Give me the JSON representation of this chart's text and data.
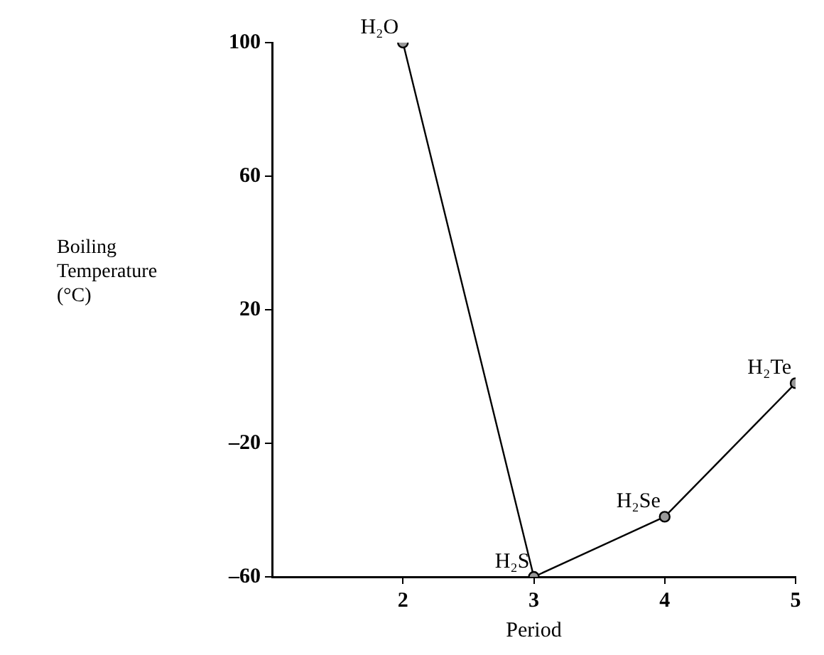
{
  "chart_data": {
    "type": "line",
    "xlabel": "Period",
    "ylabel": "Boiling Temperature (°C)",
    "x": [
      2,
      3,
      4,
      5
    ],
    "series": [
      {
        "color": "#000000",
        "values": [
          100,
          -60,
          -42,
          -2
        ]
      }
    ],
    "xlim": [
      1,
      5
    ],
    "xticks": [
      2,
      3,
      4,
      5
    ],
    "ylim": [
      -60,
      100
    ],
    "yticks": [
      {
        "value": -60,
        "label": "–60"
      },
      {
        "value": -20,
        "label": "–20"
      },
      20,
      60,
      100
    ],
    "grid": false,
    "legend": false,
    "marker": "circle",
    "line_style": "solid",
    "annotations": [
      {
        "text": "H₂O",
        "x": 2,
        "y": 100
      },
      {
        "text": "H₂S",
        "x": 3,
        "y": -60
      },
      {
        "text": "H₂Se",
        "x": 4,
        "y": -42
      },
      {
        "text": "H₂Te",
        "x": 5,
        "y": -2
      }
    ]
  }
}
